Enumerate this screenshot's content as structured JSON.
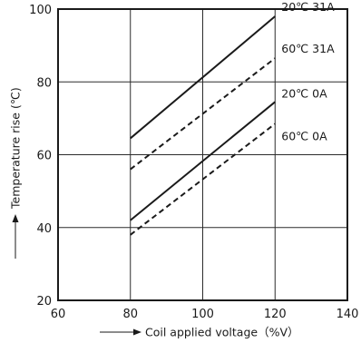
{
  "chart_data": {
    "type": "line",
    "title": "",
    "xlabel": "Coil applied voltage（%V）",
    "ylabel": "Temperature rise (℃)",
    "xlim": [
      60,
      140
    ],
    "ylim": [
      20,
      100
    ],
    "xticks": [
      60,
      80,
      100,
      120,
      140
    ],
    "yticks": [
      20,
      40,
      60,
      80,
      100
    ],
    "grid": true,
    "legend": "labels at line ends",
    "series": [
      {
        "name": "20℃ 31A",
        "style": "solid",
        "x": [
          80,
          120
        ],
        "y": [
          64.5,
          98
        ]
      },
      {
        "name": "60℃ 31A",
        "style": "dashed",
        "x": [
          80,
          120
        ],
        "y": [
          56,
          86.5
        ]
      },
      {
        "name": "20℃ 0A",
        "style": "solid",
        "x": [
          80,
          120
        ],
        "y": [
          42,
          74.5
        ]
      },
      {
        "name": "60℃ 0A",
        "style": "dashed",
        "x": [
          80,
          120
        ],
        "y": [
          38,
          68.5
        ]
      }
    ]
  }
}
